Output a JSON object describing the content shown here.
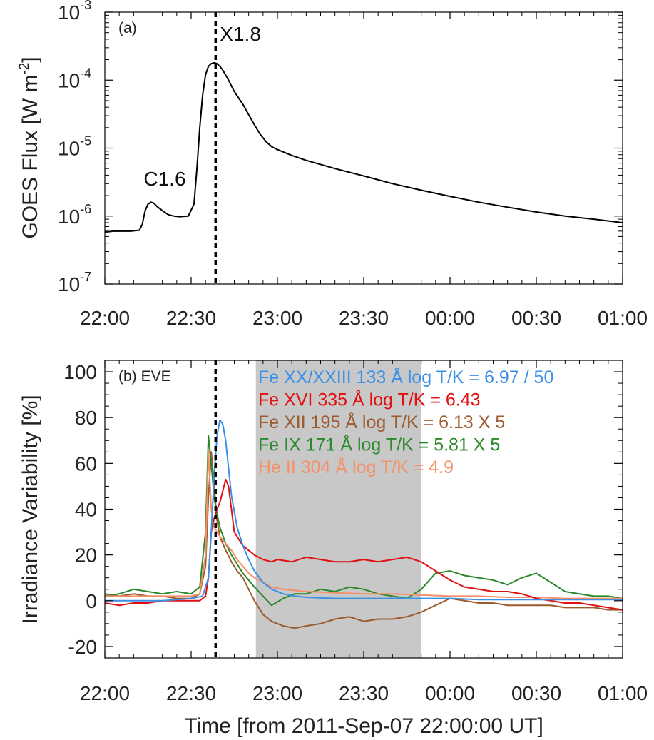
{
  "chart_data": [
    {
      "type": "line",
      "panel_label": "(a)",
      "ylabel": "GOES Flux [W m",
      "ylabel_sup": "-2",
      "ylabel_close": "]",
      "yscale": "log",
      "ylim": [
        1e-07,
        0.001
      ],
      "xlim": [
        0,
        180
      ],
      "x_units": "minutes after 2011-Sep-07 22:00 UT",
      "xtick_values": [
        0,
        30,
        60,
        90,
        120,
        150,
        180
      ],
      "xtick_labels": [
        "22:00",
        "22:30",
        "23:00",
        "23:30",
        "00:00",
        "00:30",
        "01:00"
      ],
      "ytick_values": [
        0.001,
        0.0001,
        1e-05,
        1e-06,
        1e-07
      ],
      "ytick_labels": [
        {
          "base": "10",
          "exp": "-3"
        },
        {
          "base": "10",
          "exp": "-4"
        },
        {
          "base": "10",
          "exp": "-5"
        },
        {
          "base": "10",
          "exp": "-6"
        },
        {
          "base": "10",
          "exp": "-7"
        }
      ],
      "vline_x": 38.5,
      "annotations": [
        {
          "text": "X1.8",
          "x": 40,
          "y": 0.00038
        },
        {
          "text": "C1.6",
          "x": 13.5,
          "y": 2.8e-06
        }
      ],
      "series": [
        {
          "color": "#000000",
          "x": [
            0,
            3,
            6,
            9,
            12,
            13,
            14,
            15,
            16,
            17,
            18,
            20,
            22,
            24,
            26,
            29,
            31,
            32,
            33,
            34,
            35,
            36,
            37,
            38,
            39,
            40,
            41,
            43,
            45,
            48,
            50,
            52,
            54,
            56,
            58,
            60,
            65,
            70,
            80,
            90,
            100,
            110,
            120,
            130,
            140,
            150,
            160,
            170,
            180
          ],
          "y": [
            5.8e-07,
            6e-07,
            6e-07,
            6e-07,
            6.2e-07,
            7.5e-07,
            1.2e-06,
            1.5e-06,
            1.6e-06,
            1.55e-06,
            1.4e-06,
            1.2e-06,
            1.05e-06,
            1e-06,
            9.8e-07,
            1e-06,
            1.5e-06,
            5e-06,
            2e-05,
            6e-05,
            0.00012,
            0.00016,
            0.000175,
            0.00018,
            0.000175,
            0.00016,
            0.00014,
            0.0001,
            6.8e-05,
            4.4e-05,
            3.1e-05,
            2.2e-05,
            1.6e-05,
            1.25e-05,
            1.05e-05,
            9.5e-06,
            7.8e-06,
            6.6e-06,
            5e-06,
            3.9e-06,
            3e-06,
            2.4e-06,
            1.95e-06,
            1.6e-06,
            1.35e-06,
            1.15e-06,
            1e-06,
            9e-07,
            8e-07
          ]
        }
      ]
    },
    {
      "type": "line",
      "panel_label": "(b)",
      "instrument": "EVE",
      "ylabel": "Irradiance Variability [%]",
      "xlabel": "Time [from 2011-Sep-07 22:00:00 UT]",
      "ylim": [
        -25,
        105
      ],
      "xlim": [
        0,
        180
      ],
      "x_units": "minutes after 2011-Sep-07 22:00 UT",
      "xtick_values": [
        0,
        30,
        60,
        90,
        120,
        150,
        180
      ],
      "xtick_labels": [
        "22:00",
        "22:30",
        "23:00",
        "23:30",
        "00:00",
        "00:30",
        "01:00"
      ],
      "ytick_values": [
        100,
        80,
        60,
        40,
        20,
        0,
        -20
      ],
      "ytick_labels": [
        "100",
        "80",
        "60",
        "40",
        "20",
        "0",
        "-20"
      ],
      "vline_x": 38.5,
      "shaded_region": [
        52.5,
        110
      ],
      "shade_color": "#c8c8c8",
      "series": [
        {
          "name": "Fe XX/XXIII 133 Å log T/K = 6.97 / 50",
          "color": "#3a8fe6",
          "x": [
            0,
            10,
            20,
            30,
            34,
            36,
            37,
            38,
            39,
            40,
            41,
            42,
            43,
            44,
            46,
            48,
            50,
            52,
            55,
            58,
            62,
            66,
            70,
            80,
            90,
            100,
            110,
            120,
            130,
            140,
            150,
            160,
            170,
            180
          ],
          "y": [
            0,
            0,
            0,
            1,
            2,
            10,
            30,
            55,
            72,
            79,
            77,
            70,
            58,
            46,
            32,
            24,
            18,
            13,
            8,
            5,
            3,
            2,
            1.5,
            1,
            1,
            1,
            1,
            1,
            0.5,
            0.5,
            0.5,
            0.5,
            0.5,
            0.5
          ]
        },
        {
          "name": "Fe XVI 335 Å log T/K = 6.43",
          "color": "#e01010",
          "x": [
            0,
            5,
            10,
            15,
            20,
            25,
            30,
            33,
            35,
            36,
            37,
            38,
            39,
            40,
            41,
            42,
            43,
            44,
            45,
            46,
            48,
            50,
            52,
            55,
            58,
            60,
            65,
            70,
            75,
            80,
            85,
            90,
            95,
            100,
            105,
            110,
            115,
            120,
            125,
            130,
            135,
            140,
            145,
            150,
            155,
            160,
            165,
            170,
            175,
            180
          ],
          "y": [
            -1,
            -2,
            -1,
            -1,
            0,
            0,
            0,
            0,
            2,
            10,
            30,
            36,
            40,
            43,
            48,
            53,
            50,
            40,
            30,
            28,
            24,
            22,
            20,
            18,
            17,
            18,
            17,
            19,
            18,
            17,
            17,
            18,
            17,
            18,
            19,
            17,
            13,
            9,
            6,
            5,
            4,
            4,
            3,
            1,
            0,
            -1,
            -1,
            -2,
            -3,
            -4
          ]
        },
        {
          "name": "Fe XII 195 Å log T/K = 6.13 X 5",
          "color": "#9c5a2f",
          "x": [
            0,
            5,
            10,
            15,
            20,
            25,
            30,
            33,
            35,
            36,
            37,
            38,
            39,
            40,
            42,
            44,
            46,
            48,
            50,
            52,
            55,
            58,
            62,
            66,
            70,
            75,
            80,
            85,
            90,
            95,
            100,
            105,
            110,
            115,
            120,
            125,
            130,
            135,
            140,
            145,
            150,
            155,
            160,
            165,
            170,
            175,
            180
          ],
          "y": [
            3,
            2,
            3,
            2,
            2,
            1,
            1,
            3,
            15,
            45,
            65,
            50,
            35,
            28,
            22,
            17,
            13,
            10,
            5,
            0,
            -6,
            -9,
            -11,
            -12,
            -11,
            -10,
            -8,
            -7,
            -9,
            -8,
            -8,
            -7,
            -5,
            -2,
            1,
            0,
            -1,
            -1,
            -2,
            -2,
            -2,
            -2,
            -3,
            -3,
            -3,
            -4,
            -4
          ]
        },
        {
          "name": "Fe IX 171 Å log T/K = 5.81 X 5",
          "color": "#2a8a2a",
          "x": [
            0,
            5,
            10,
            15,
            20,
            25,
            30,
            33,
            35,
            36,
            37,
            38,
            39,
            40,
            42,
            44,
            46,
            48,
            50,
            52,
            55,
            58,
            62,
            66,
            70,
            75,
            80,
            85,
            90,
            95,
            100,
            105,
            110,
            115,
            120,
            125,
            130,
            135,
            140,
            145,
            150,
            155,
            160,
            165,
            170,
            175,
            180
          ],
          "y": [
            2,
            3,
            5,
            4,
            3,
            4,
            3,
            6,
            30,
            72,
            60,
            45,
            38,
            32,
            25,
            20,
            16,
            12,
            9,
            6,
            2,
            -2,
            1,
            3,
            3,
            5,
            4,
            6,
            5,
            3,
            2,
            1,
            5,
            12,
            13,
            11,
            10,
            9,
            7,
            10,
            12,
            8,
            4,
            3,
            2,
            2,
            1
          ]
        },
        {
          "name": "He II 304 Å log T/K = 4.9",
          "color": "#f4906a",
          "x": [
            0,
            10,
            20,
            30,
            33,
            35,
            36,
            37,
            38,
            39,
            40,
            42,
            44,
            46,
            48,
            50,
            52,
            55,
            58,
            62,
            66,
            70,
            80,
            90,
            100,
            110,
            120,
            130,
            140,
            150,
            160,
            170,
            180
          ],
          "y": [
            2,
            2,
            2,
            2,
            3,
            20,
            66,
            40,
            32,
            30,
            28,
            25,
            22,
            18,
            15,
            12,
            10,
            8,
            6,
            5,
            4.5,
            4,
            3.5,
            3,
            3,
            2.5,
            2,
            2,
            1.5,
            1.5,
            1,
            1,
            1
          ]
        }
      ]
    }
  ]
}
